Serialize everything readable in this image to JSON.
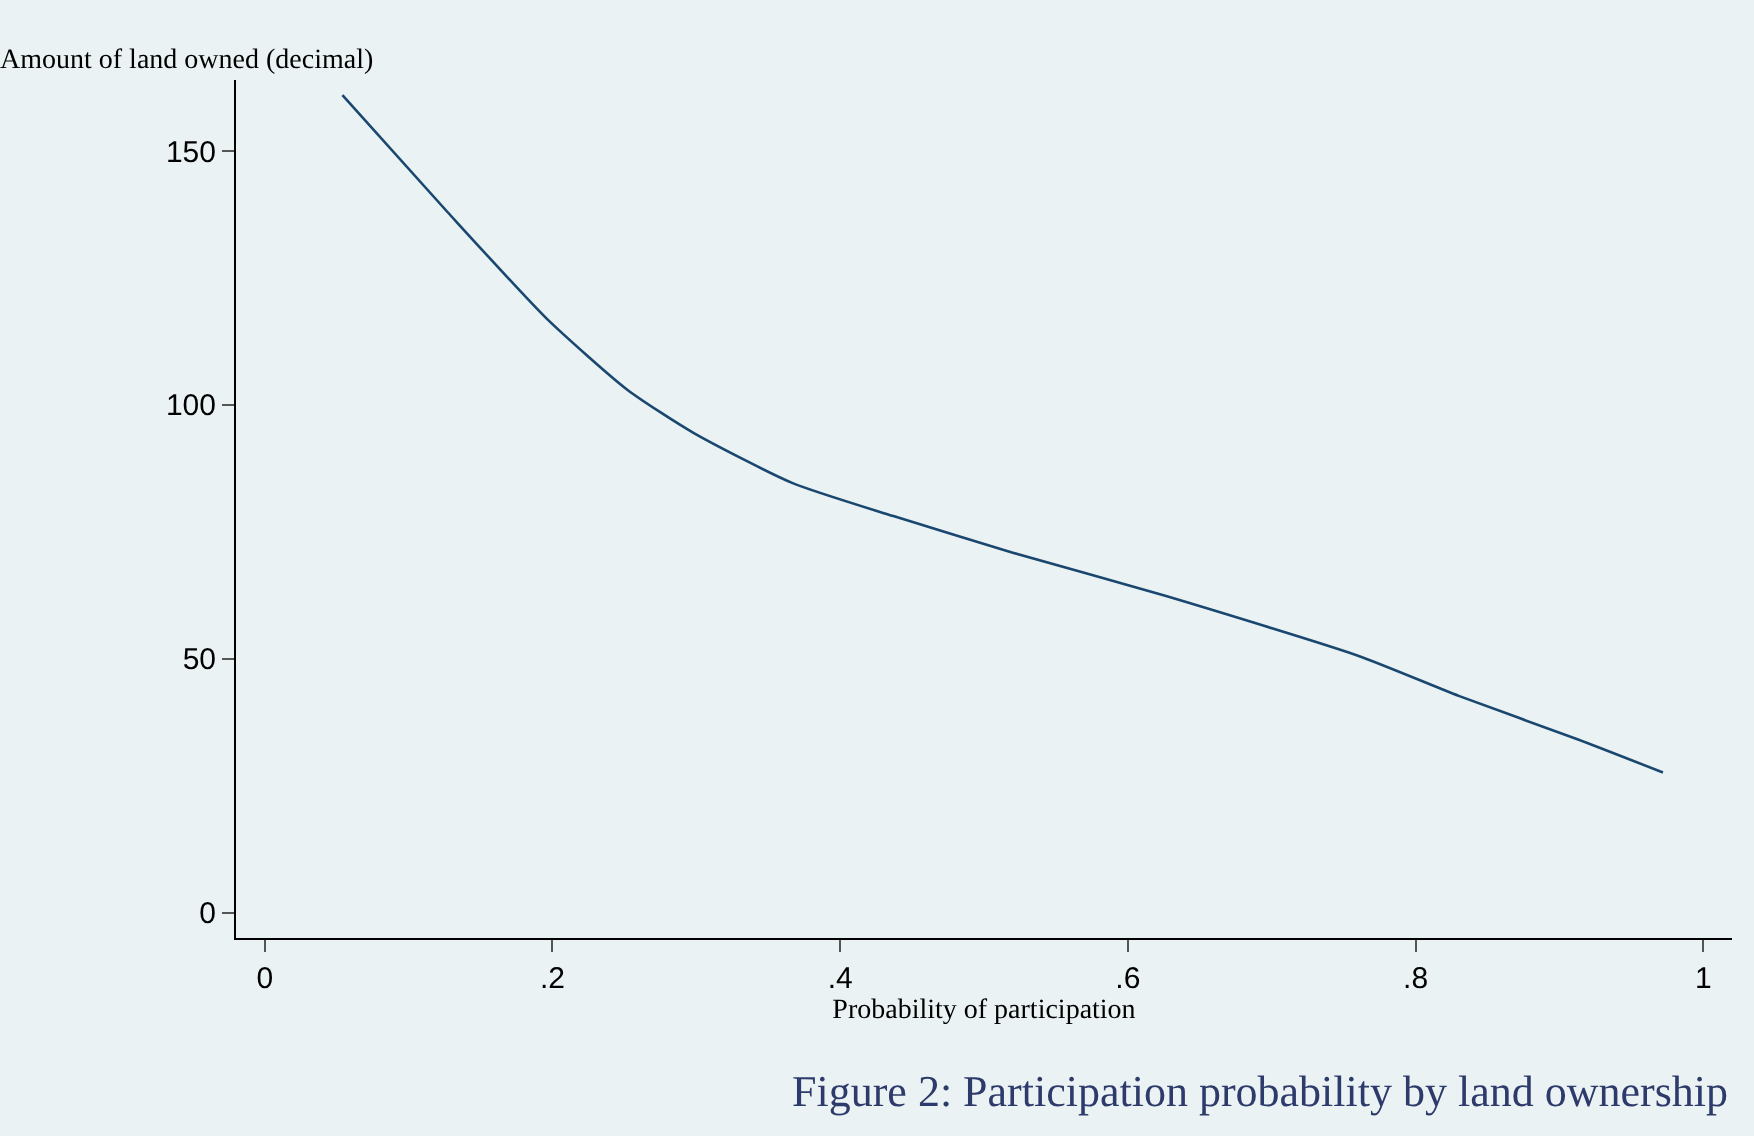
{
  "chart_data": {
    "type": "line",
    "title": "Figure 2: Participation probability by land ownership",
    "xlabel": "Probability of participation",
    "ylabel": "Amount of land owned (decimal)",
    "x": [
      0.054,
      0.127,
      0.196,
      0.252,
      0.298,
      0.367,
      0.437,
      0.52,
      0.626,
      0.76,
      0.83,
      0.913,
      0.972
    ],
    "series": [
      {
        "color": "#1a476f",
        "values": [
          161,
          138,
          117,
          103,
          94.5,
          84.6,
          78.1,
          70.9,
          62.4,
          50.6,
          42.7,
          34.1,
          27.6
        ]
      }
    ],
    "xlim": [
      -0.02,
      1.02
    ],
    "ylim": [
      -5,
      164
    ],
    "xticks": [
      0,
      {
        "value": 0.2,
        "label": ".2"
      },
      {
        "value": 0.4,
        "label": ".4"
      },
      {
        "value": 0.6,
        "label": ".6"
      },
      {
        "value": 0.8,
        "label": ".8"
      },
      1
    ],
    "yticks": [
      0,
      50,
      100,
      150
    ],
    "grid": false,
    "marker": "none",
    "line_style": "solid"
  }
}
